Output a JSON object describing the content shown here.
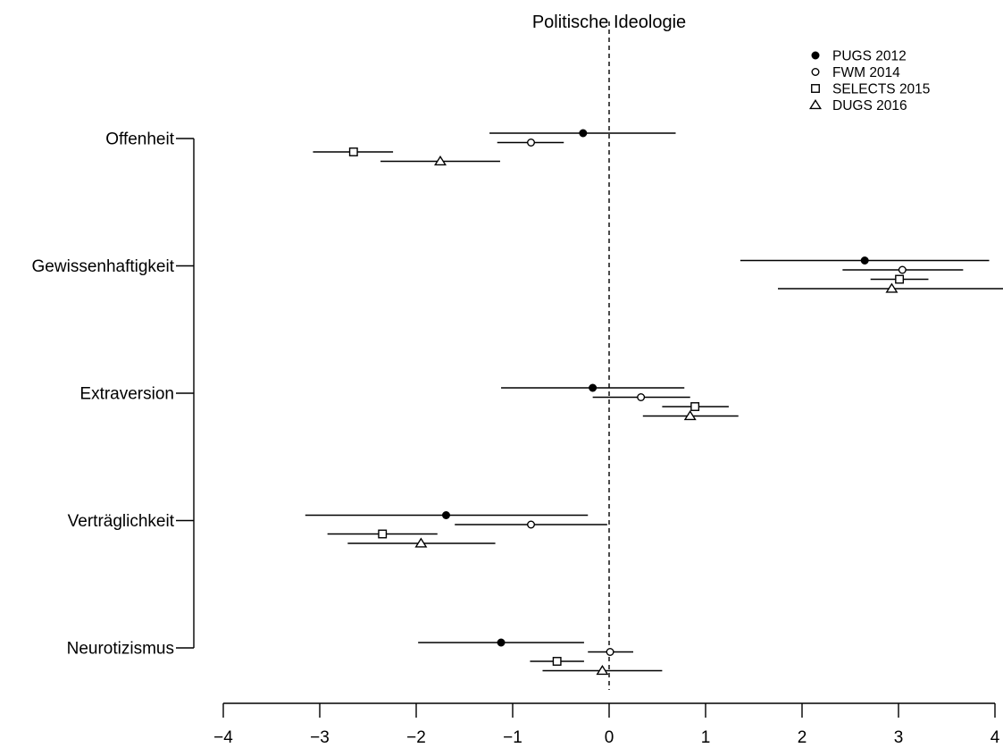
{
  "chart_data": {
    "type": "scatter",
    "title": "Politische Ideologie",
    "xlabel": "",
    "ylabel": "",
    "xlim": [
      -4,
      4
    ],
    "x_ticks": [
      -4,
      -3,
      -2,
      -1,
      0,
      1,
      2,
      3,
      4
    ],
    "x_tick_labels": [
      "−4",
      "−3",
      "−2",
      "−1",
      "0",
      "1",
      "2",
      "3",
      "4"
    ],
    "reference_line_x": 0,
    "legend_position": "top-right",
    "grid": false,
    "categories": [
      "Offenheit",
      "Gewissenhaftigkeit",
      "Extraversion",
      "Verträglichkeit",
      "Neurotizismus"
    ],
    "series": [
      {
        "name": "PUGS 2012",
        "marker": "filled-circle",
        "points": [
          {
            "estimate": -0.27,
            "lower": -1.24,
            "upper": 0.69
          },
          {
            "estimate": 2.65,
            "lower": 1.36,
            "upper": 3.94
          },
          {
            "estimate": -0.17,
            "lower": -1.12,
            "upper": 0.78
          },
          {
            "estimate": -1.69,
            "lower": -3.15,
            "upper": -0.22
          },
          {
            "estimate": -1.12,
            "lower": -1.98,
            "upper": -0.26
          }
        ]
      },
      {
        "name": "FWM 2014",
        "marker": "open-circle",
        "points": [
          {
            "estimate": -0.81,
            "lower": -1.16,
            "upper": -0.47
          },
          {
            "estimate": 3.04,
            "lower": 2.42,
            "upper": 3.67
          },
          {
            "estimate": 0.33,
            "lower": -0.17,
            "upper": 0.84
          },
          {
            "estimate": -0.81,
            "lower": -1.6,
            "upper": -0.02
          },
          {
            "estimate": 0.01,
            "lower": -0.22,
            "upper": 0.25
          }
        ]
      },
      {
        "name": "SELECTS 2015",
        "marker": "open-square",
        "points": [
          {
            "estimate": -2.65,
            "lower": -3.07,
            "upper": -2.24
          },
          {
            "estimate": 3.01,
            "lower": 2.71,
            "upper": 3.31
          },
          {
            "estimate": 0.89,
            "lower": 0.55,
            "upper": 1.24
          },
          {
            "estimate": -2.35,
            "lower": -2.92,
            "upper": -1.78
          },
          {
            "estimate": -0.54,
            "lower": -0.82,
            "upper": -0.26
          }
        ]
      },
      {
        "name": "DUGS 2016",
        "marker": "open-triangle",
        "points": [
          {
            "estimate": -1.75,
            "lower": -2.37,
            "upper": -1.13
          },
          {
            "estimate": 2.93,
            "lower": 1.75,
            "upper": 4.1
          },
          {
            "estimate": 0.84,
            "lower": 0.35,
            "upper": 1.34
          },
          {
            "estimate": -1.95,
            "lower": -2.71,
            "upper": -1.18
          },
          {
            "estimate": -0.07,
            "lower": -0.69,
            "upper": 0.55
          }
        ]
      }
    ]
  }
}
